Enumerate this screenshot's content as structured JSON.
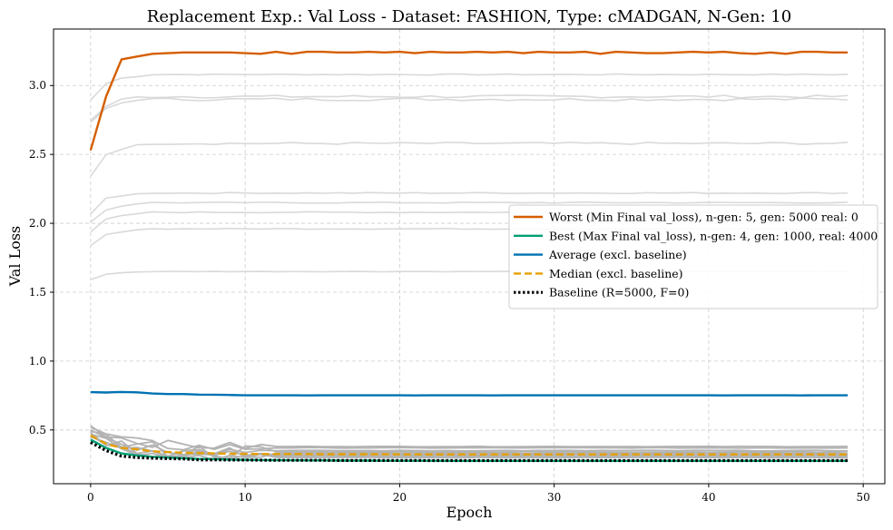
{
  "chart_data": {
    "type": "line",
    "title": "Replacement Exp.: Val Loss - Dataset: FASHION, Type: cMADGAN, N-Gen: 10",
    "xlabel": "Epoch",
    "ylabel": "Val Loss",
    "xlim": [
      -2.4,
      51.4
    ],
    "ylim": [
      0.11,
      3.41
    ],
    "x_ticks": [
      0,
      10,
      20,
      30,
      40,
      50
    ],
    "y_ticks": [
      0.5,
      1.0,
      1.5,
      2.0,
      2.5,
      3.0
    ],
    "x_tick_labels": [
      "0",
      "10",
      "20",
      "30",
      "40",
      "50"
    ],
    "y_tick_labels": [
      "0.5",
      "1.0",
      "1.5",
      "2.0",
      "2.5",
      "3.0"
    ],
    "grid": true,
    "legend_position": "center-right",
    "epochs": 50,
    "background_runs_high": [
      {
        "start": 2.42,
        "shape": [
          0.72,
          0.9,
          0.96,
          0.98,
          1.0
        ],
        "final": 3.08,
        "noise": 0.004
      },
      {
        "start": 2.34,
        "shape": [
          0.7,
          0.88,
          0.96,
          0.99,
          1.0
        ],
        "final": 2.92,
        "noise": 0.01
      },
      {
        "start": 2.38,
        "shape": [
          0.68,
          0.87,
          0.95,
          1.0,
          1.0
        ],
        "final": 2.9,
        "noise": 0.01
      },
      {
        "start": 2.05,
        "shape": [
          0.55,
          0.85,
          0.93,
          0.97,
          1.0
        ],
        "final": 2.58,
        "noise": 0.008
      },
      {
        "start": 1.84,
        "shape": [
          0.6,
          0.9,
          0.95,
          0.98,
          1.0
        ],
        "final": 2.22,
        "noise": 0.004
      },
      {
        "start": 1.8,
        "shape": [
          0.6,
          0.85,
          0.93,
          0.98,
          1.0
        ],
        "final": 2.15,
        "noise": 0.004
      },
      {
        "start": 1.74,
        "shape": [
          0.58,
          0.85,
          0.92,
          0.97,
          1.0
        ],
        "final": 2.08,
        "noise": 0.004
      },
      {
        "start": 1.67,
        "shape": [
          0.58,
          0.85,
          0.93,
          0.98,
          1.0
        ],
        "final": 1.96,
        "noise": 0.003
      },
      {
        "start": 1.52,
        "shape": [
          0.55,
          0.86,
          0.93,
          0.98,
          1.0
        ],
        "final": 1.65,
        "noise": 0.002
      }
    ],
    "background_runs_low": [
      {
        "start": 0.53,
        "final": 0.38,
        "noise": 0.01
      },
      {
        "start": 0.52,
        "final": 0.37,
        "noise": 0.012
      },
      {
        "start": 0.5,
        "final": 0.35,
        "noise": 0.015
      },
      {
        "start": 0.49,
        "final": 0.34,
        "noise": 0.02
      },
      {
        "start": 0.48,
        "final": 0.33,
        "noise": 0.015
      },
      {
        "start": 0.47,
        "final": 0.32,
        "noise": 0.012
      },
      {
        "start": 0.46,
        "final": 0.31,
        "noise": 0.01
      },
      {
        "start": 0.45,
        "final": 0.3,
        "noise": 0.008
      }
    ],
    "series": [
      {
        "name": "Worst (Min Final val_loss), n-gen: 5, gen: 5000 real: 0",
        "color": "#d55e00",
        "dash": "solid",
        "values": [
          2.53,
          2.92,
          3.19,
          3.21,
          3.23,
          3.235,
          3.24,
          3.24,
          3.24,
          3.24,
          3.235,
          3.23,
          3.245,
          3.23,
          3.245,
          3.245,
          3.24,
          3.24,
          3.245,
          3.24,
          3.245,
          3.235,
          3.245,
          3.24,
          3.24,
          3.245,
          3.24,
          3.245,
          3.235,
          3.245,
          3.24,
          3.24,
          3.245,
          3.23,
          3.245,
          3.24,
          3.235,
          3.235,
          3.24,
          3.245,
          3.24,
          3.245,
          3.235,
          3.23,
          3.24,
          3.23,
          3.245,
          3.245,
          3.24,
          3.24
        ]
      },
      {
        "name": "Best (Max Final val_loss), n-gen: 4, gen: 1000, real: 4000",
        "color": "#009e73",
        "dash": "solid",
        "values": [
          0.43,
          0.37,
          0.33,
          0.315,
          0.305,
          0.3,
          0.295,
          0.29,
          0.288,
          0.285,
          0.283,
          0.282,
          0.281,
          0.28,
          0.279,
          0.279,
          0.278,
          0.278,
          0.278,
          0.277,
          0.277,
          0.277,
          0.277,
          0.276,
          0.276,
          0.276,
          0.276,
          0.276,
          0.276,
          0.276,
          0.276,
          0.276,
          0.276,
          0.276,
          0.276,
          0.276,
          0.276,
          0.276,
          0.276,
          0.276,
          0.276,
          0.276,
          0.276,
          0.276,
          0.276,
          0.276,
          0.276,
          0.276,
          0.276,
          0.276
        ]
      },
      {
        "name": "Average (excl. baseline)",
        "color": "#0072b2",
        "dash": "solid",
        "values": [
          0.775,
          0.772,
          0.776,
          0.773,
          0.765,
          0.761,
          0.761,
          0.757,
          0.756,
          0.754,
          0.752,
          0.752,
          0.752,
          0.752,
          0.751,
          0.752,
          0.752,
          0.752,
          0.752,
          0.752,
          0.752,
          0.751,
          0.752,
          0.752,
          0.752,
          0.752,
          0.751,
          0.752,
          0.752,
          0.752,
          0.752,
          0.752,
          0.752,
          0.752,
          0.752,
          0.752,
          0.752,
          0.752,
          0.752,
          0.752,
          0.752,
          0.751,
          0.752,
          0.752,
          0.752,
          0.752,
          0.751,
          0.752,
          0.752,
          0.752
        ]
      },
      {
        "name": "Median (excl. baseline)",
        "color": "#e69f00",
        "dash": "dashed",
        "values": [
          0.46,
          0.4,
          0.37,
          0.36,
          0.345,
          0.34,
          0.335,
          0.332,
          0.33,
          0.328,
          0.327,
          0.326,
          0.325,
          0.325,
          0.325,
          0.324,
          0.324,
          0.324,
          0.324,
          0.324,
          0.323,
          0.323,
          0.323,
          0.323,
          0.323,
          0.323,
          0.323,
          0.323,
          0.323,
          0.323,
          0.323,
          0.323,
          0.323,
          0.323,
          0.323,
          0.323,
          0.323,
          0.323,
          0.323,
          0.323,
          0.323,
          0.323,
          0.323,
          0.323,
          0.323,
          0.323,
          0.323,
          0.323,
          0.323,
          0.323
        ]
      },
      {
        "name": "Baseline (R=5000, F=0)",
        "color": "#000000",
        "dash": "dotted",
        "values": [
          0.41,
          0.35,
          0.31,
          0.3,
          0.295,
          0.292,
          0.29,
          0.283,
          0.283,
          0.282,
          0.282,
          0.281,
          0.28,
          0.28,
          0.28,
          0.28,
          0.279,
          0.279,
          0.279,
          0.279,
          0.279,
          0.279,
          0.278,
          0.278,
          0.278,
          0.278,
          0.278,
          0.278,
          0.278,
          0.278,
          0.278,
          0.278,
          0.278,
          0.278,
          0.278,
          0.278,
          0.278,
          0.278,
          0.278,
          0.278,
          0.278,
          0.278,
          0.278,
          0.278,
          0.278,
          0.278,
          0.278,
          0.278,
          0.278,
          0.278
        ]
      }
    ]
  }
}
